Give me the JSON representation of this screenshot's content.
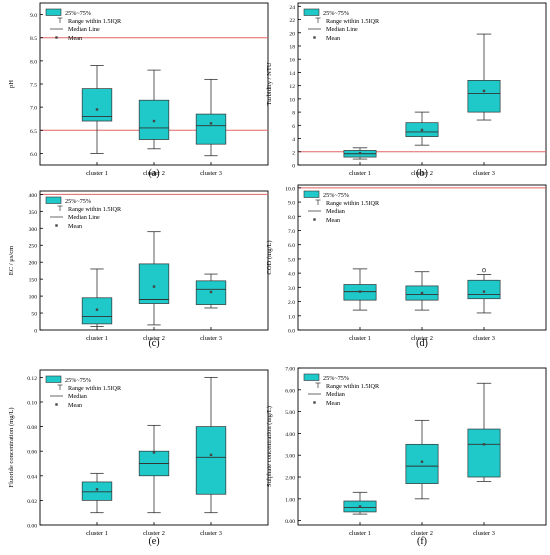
{
  "figure": {
    "panel_labels": [
      "(a)",
      "(b)",
      "(c)",
      "(d)",
      "(e)",
      "(f)"
    ]
  },
  "colors": {
    "box_fill": "#1fc9c9",
    "box_stroke": "#333333",
    "reference_line": "#e06666",
    "axis": "#000000"
  },
  "chart_data": [
    {
      "type": "box",
      "panel": "(a)",
      "ylabel": "pH",
      "categories": [
        "cluster 1",
        "cluster 2",
        "cluster 3"
      ],
      "ylim": [
        5.75,
        9.25
      ],
      "yticks": [
        6.0,
        6.5,
        7.0,
        7.5,
        8.0,
        8.5,
        9.0
      ],
      "tick_format": 1,
      "reference_lines": [
        6.5,
        8.5
      ],
      "legend": [
        "25%~75%",
        "Range within 1.5IQR",
        "Median Line",
        "Mean"
      ],
      "boxes": [
        {
          "whisker_low": 6.0,
          "q1": 6.7,
          "median": 6.8,
          "q3": 7.4,
          "whisker_high": 7.9,
          "mean": 6.95
        },
        {
          "whisker_low": 6.1,
          "q1": 6.3,
          "median": 6.55,
          "q3": 7.15,
          "whisker_high": 7.8,
          "mean": 6.7
        },
        {
          "whisker_low": 5.95,
          "q1": 6.2,
          "median": 6.6,
          "q3": 6.85,
          "whisker_high": 7.6,
          "mean": 6.65
        }
      ]
    },
    {
      "type": "box",
      "panel": "(b)",
      "ylabel": "Turbidity / NTU",
      "categories": [
        "cluster 1",
        "cluster 2",
        "cluster 3"
      ],
      "ylim": [
        0,
        24.5
      ],
      "yticks": [
        0,
        2,
        4,
        6,
        8,
        10,
        12,
        14,
        16,
        18,
        20,
        22,
        24
      ],
      "tick_format": 0,
      "reference_lines": [
        2
      ],
      "legend": [
        "25%~75%",
        "Range within 1.5IQR",
        "Median Line",
        "Mean"
      ],
      "boxes": [
        {
          "whisker_low": 0.9,
          "q1": 1.2,
          "median": 1.7,
          "q3": 2.2,
          "whisker_high": 2.6,
          "mean": 1.8
        },
        {
          "whisker_low": 3.0,
          "q1": 4.3,
          "median": 5.0,
          "q3": 6.4,
          "whisker_high": 8.0,
          "mean": 5.3
        },
        {
          "whisker_low": 6.8,
          "q1": 8.0,
          "median": 10.8,
          "q3": 12.8,
          "whisker_high": 19.8,
          "mean": 11.2
        }
      ]
    },
    {
      "type": "box",
      "panel": "(c)",
      "ylabel": "EC / μs/cm",
      "categories": [
        "cluster 1",
        "cluster 2",
        "cluster 3"
      ],
      "ylim": [
        0,
        410
      ],
      "yticks": [
        0,
        50,
        100,
        150,
        200,
        250,
        300,
        350,
        400
      ],
      "tick_format": 0,
      "reference_lines": [
        400
      ],
      "legend": [
        "25%~75%",
        "Range within 1.5IQR",
        "Median Line",
        "Mean"
      ],
      "boxes": [
        {
          "whisker_low": 10,
          "q1": 18,
          "median": 40,
          "q3": 95,
          "whisker_high": 180,
          "mean": 60
        },
        {
          "whisker_low": 15,
          "q1": 78,
          "median": 90,
          "q3": 195,
          "whisker_high": 290,
          "mean": 128
        },
        {
          "whisker_low": 65,
          "q1": 75,
          "median": 120,
          "q3": 145,
          "whisker_high": 165,
          "mean": 112
        }
      ]
    },
    {
      "type": "box",
      "panel": "(d)",
      "ylabel": "COD (mg/L)",
      "categories": [
        "cluster 1",
        "cluster 2",
        "cluster 3"
      ],
      "ylim": [
        0,
        10.2
      ],
      "yticks": [
        0,
        1,
        2,
        3,
        4,
        5,
        6,
        7,
        8,
        9,
        10
      ],
      "tick_format": 1,
      "reference_lines": [
        10
      ],
      "legend": [
        "25%~75%",
        "Range within 1.5IQR",
        "Median",
        "Mean"
      ],
      "boxes": [
        {
          "whisker_low": 1.4,
          "q1": 2.1,
          "median": 2.7,
          "q3": 3.2,
          "whisker_high": 4.3,
          "mean": 2.7
        },
        {
          "whisker_low": 1.4,
          "q1": 2.1,
          "median": 2.5,
          "q3": 3.1,
          "whisker_high": 4.1,
          "mean": 2.6
        },
        {
          "whisker_low": 1.2,
          "q1": 2.2,
          "median": 2.5,
          "q3": 3.5,
          "whisker_high": 3.9,
          "mean": 2.7,
          "outliers": [
            4.2
          ]
        }
      ]
    },
    {
      "type": "box",
      "panel": "(e)",
      "ylabel": "Fluoride concentration (mg/L)",
      "categories": [
        "cluster 1",
        "cluster 2",
        "cluster 3"
      ],
      "ylim": [
        0,
        0.126
      ],
      "yticks": [
        0.0,
        0.02,
        0.04,
        0.06,
        0.08,
        0.1,
        0.12
      ],
      "tick_format": 2,
      "reference_lines": [],
      "legend": [
        "25%~75%",
        "Range within 1.5IQR",
        "Median",
        "Mean"
      ],
      "boxes": [
        {
          "whisker_low": 0.01,
          "q1": 0.02,
          "median": 0.027,
          "q3": 0.035,
          "whisker_high": 0.042,
          "mean": 0.029
        },
        {
          "whisker_low": 0.01,
          "q1": 0.04,
          "median": 0.05,
          "q3": 0.06,
          "whisker_high": 0.081,
          "mean": 0.059
        },
        {
          "whisker_low": 0.01,
          "q1": 0.025,
          "median": 0.055,
          "q3": 0.08,
          "whisker_high": 0.12,
          "mean": 0.057
        }
      ]
    },
    {
      "type": "box",
      "panel": "(f)",
      "ylabel": "Sulphate concentration (mg/L)",
      "categories": [
        "cluster 1",
        "cluster 2",
        "cluster 3"
      ],
      "ylim": [
        -0.2,
        7.0
      ],
      "yticks": [
        0.0,
        1.0,
        2.0,
        3.0,
        4.0,
        5.0,
        6.0,
        7.0
      ],
      "tick_format": 2,
      "reference_lines": [],
      "legend": [
        "25%~75%",
        "Range within 1.5IQR",
        "Median",
        "Mean"
      ],
      "boxes": [
        {
          "whisker_low": 0.3,
          "q1": 0.4,
          "median": 0.6,
          "q3": 0.9,
          "whisker_high": 1.3,
          "mean": 0.65
        },
        {
          "whisker_low": 1.0,
          "q1": 1.7,
          "median": 2.5,
          "q3": 3.5,
          "whisker_high": 4.6,
          "mean": 2.7
        },
        {
          "whisker_low": 1.8,
          "q1": 2.0,
          "median": 3.5,
          "q3": 4.2,
          "whisker_high": 6.3,
          "mean": 3.5
        }
      ]
    }
  ]
}
